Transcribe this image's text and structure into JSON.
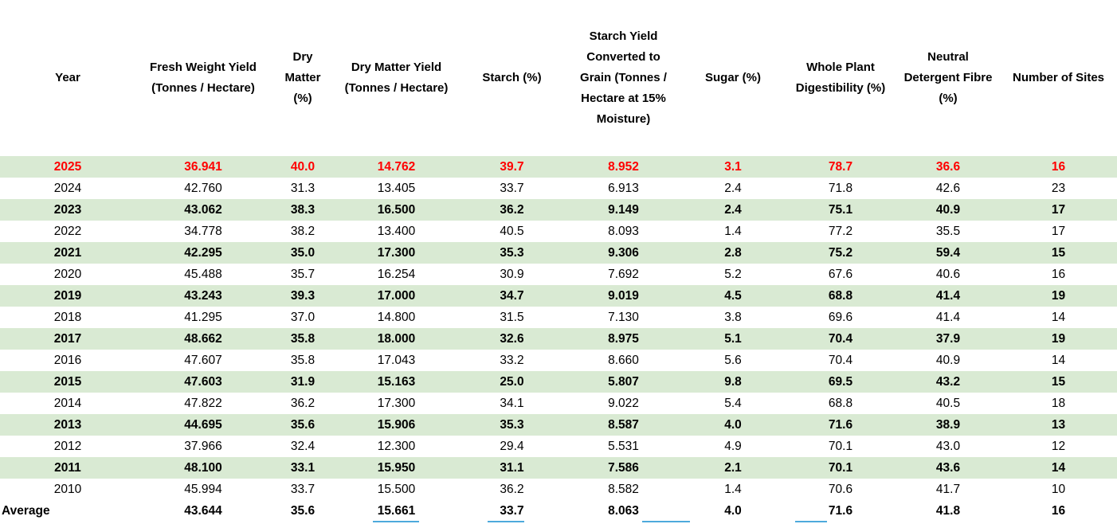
{
  "colors": {
    "highlight_row_bg": "#D9EAD3",
    "latest_year_text": "#FF0000",
    "body_text": "#000000",
    "bottom_fringe_blue": "#2E9BD6"
  },
  "table": {
    "columns": [
      {
        "key": "year",
        "label": "Year"
      },
      {
        "key": "fresh-weight-yield",
        "label": "Fresh Weight Yield (Tonnes / Hectare)"
      },
      {
        "key": "dry-matter",
        "label": "Dry Matter (%)"
      },
      {
        "key": "dry-matter-yield",
        "label": "Dry Matter Yield (Tonnes / Hectare)"
      },
      {
        "key": "starch",
        "label": "Starch (%)"
      },
      {
        "key": "starch-yield-grain",
        "label": "Starch Yield Converted to Grain (Tonnes / Hectare at 15% Moisture)"
      },
      {
        "key": "sugar",
        "label": "Sugar (%)"
      },
      {
        "key": "whole-plant-digestibility",
        "label": "Whole Plant Digestibility (%)"
      },
      {
        "key": "neutral-detergent-fibre",
        "label": "Neutral Detergent Fibre (%)"
      },
      {
        "key": "number-of-sites",
        "label": "Number of Sites"
      }
    ],
    "rows": [
      {
        "cells": [
          "2025",
          "36.941",
          "40.0",
          "14.762",
          "39.7",
          "8.952",
          "3.1",
          "78.7",
          "36.6",
          "16"
        ],
        "highlight": true,
        "bold": true,
        "red": true
      },
      {
        "cells": [
          "2024",
          "42.760",
          "31.3",
          "13.405",
          "33.7",
          "6.913",
          "2.4",
          "71.8",
          "42.6",
          "23"
        ]
      },
      {
        "cells": [
          "2023",
          "43.062",
          "38.3",
          "16.500",
          "36.2",
          "9.149",
          "2.4",
          "75.1",
          "40.9",
          "17"
        ],
        "highlight": true,
        "bold": true
      },
      {
        "cells": [
          "2022",
          "34.778",
          "38.2",
          "13.400",
          "40.5",
          "8.093",
          "1.4",
          "77.2",
          "35.5",
          "17"
        ]
      },
      {
        "cells": [
          "2021",
          "42.295",
          "35.0",
          "17.300",
          "35.3",
          "9.306",
          "2.8",
          "75.2",
          "59.4",
          "15"
        ],
        "highlight": true,
        "bold": true
      },
      {
        "cells": [
          "2020",
          "45.488",
          "35.7",
          "16.254",
          "30.9",
          "7.692",
          "5.2",
          "67.6",
          "40.6",
          "16"
        ]
      },
      {
        "cells": [
          "2019",
          "43.243",
          "39.3",
          "17.000",
          "34.7",
          "9.019",
          "4.5",
          "68.8",
          "41.4",
          "19"
        ],
        "highlight": true,
        "bold": true
      },
      {
        "cells": [
          "2018",
          "41.295",
          "37.0",
          "14.800",
          "31.5",
          "7.130",
          "3.8",
          "69.6",
          "41.4",
          "14"
        ]
      },
      {
        "cells": [
          "2017",
          "48.662",
          "35.8",
          "18.000",
          "32.6",
          "8.975",
          "5.1",
          "70.4",
          "37.9",
          "19"
        ],
        "highlight": true,
        "bold": true
      },
      {
        "cells": [
          "2016",
          "47.607",
          "35.8",
          "17.043",
          "33.2",
          "8.660",
          "5.6",
          "70.4",
          "40.9",
          "14"
        ]
      },
      {
        "cells": [
          "2015",
          "47.603",
          "31.9",
          "15.163",
          "25.0",
          "5.807",
          "9.8",
          "69.5",
          "43.2",
          "15"
        ],
        "highlight": true,
        "bold": true
      },
      {
        "cells": [
          "2014",
          "47.822",
          "36.2",
          "17.300",
          "34.1",
          "9.022",
          "5.4",
          "68.8",
          "40.5",
          "18"
        ]
      },
      {
        "cells": [
          "2013",
          "44.695",
          "35.6",
          "15.906",
          "35.3",
          "8.587",
          "4.0",
          "71.6",
          "38.9",
          "13"
        ],
        "highlight": true,
        "bold": true
      },
      {
        "cells": [
          "2012",
          "37.966",
          "32.4",
          "12.300",
          "29.4",
          "5.531",
          "4.9",
          "70.1",
          "43.0",
          "12"
        ]
      },
      {
        "cells": [
          "2011",
          "48.100",
          "33.1",
          "15.950",
          "31.1",
          "7.586",
          "2.1",
          "70.1",
          "43.6",
          "14"
        ],
        "highlight": true,
        "bold": true
      },
      {
        "cells": [
          "2010",
          "45.994",
          "33.7",
          "15.500",
          "36.2",
          "8.582",
          "1.4",
          "70.6",
          "41.7",
          "10"
        ]
      },
      {
        "cells": [
          "Average",
          "43.644",
          "35.6",
          "15.661",
          "33.7",
          "8.063",
          "4.0",
          "71.6",
          "41.8",
          "16"
        ],
        "bold": true,
        "average": true
      }
    ]
  }
}
